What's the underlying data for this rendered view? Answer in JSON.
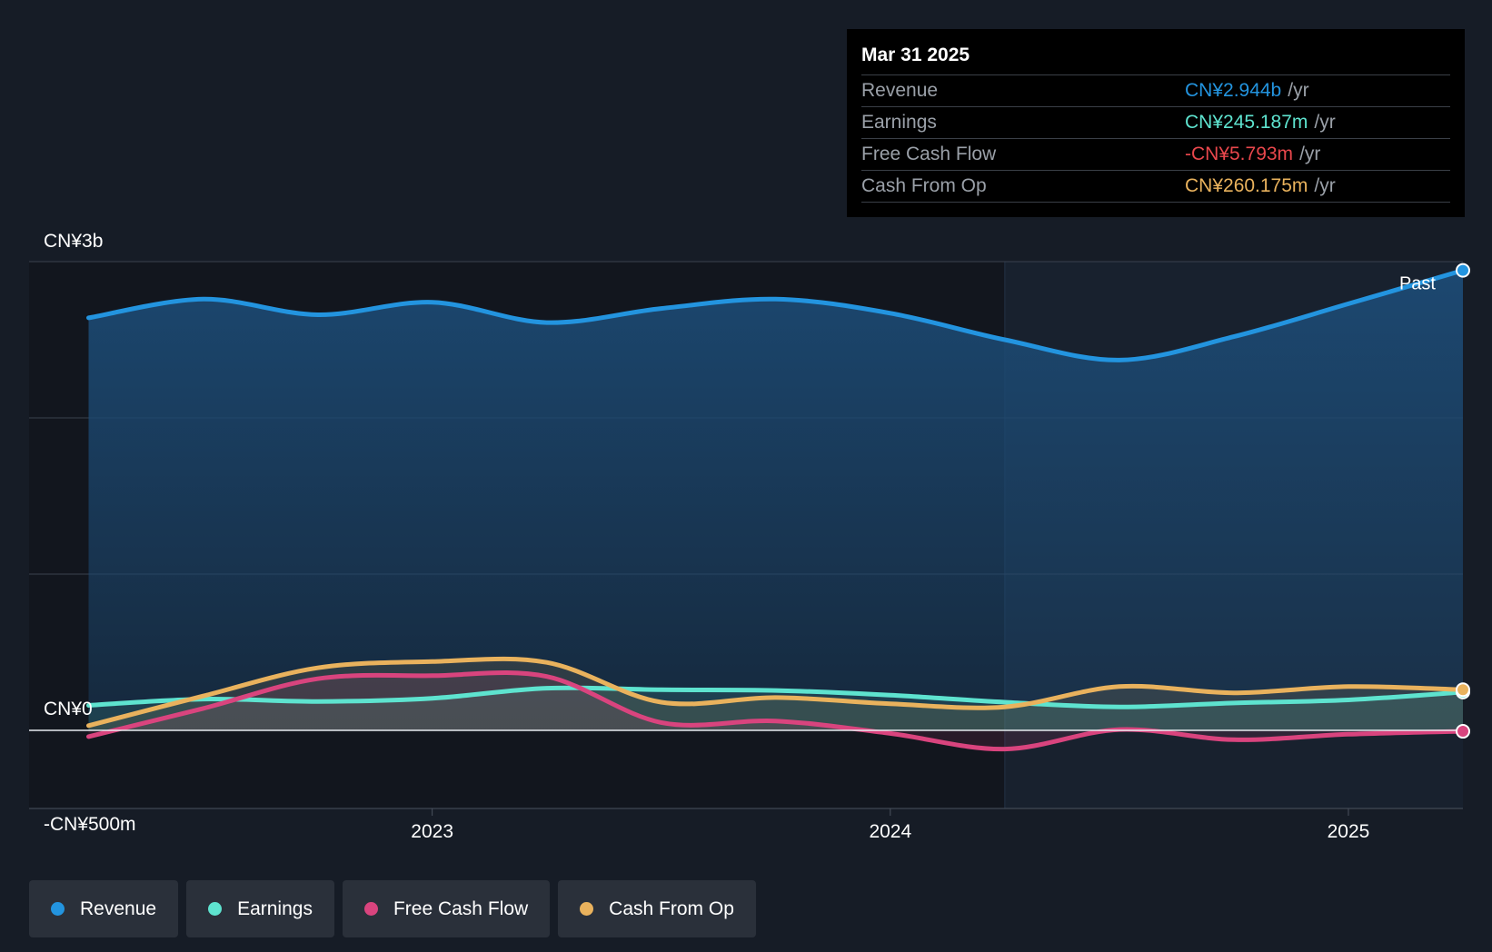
{
  "chart_data": {
    "type": "line",
    "x_unit": "year",
    "y_unit": "CN¥ millions",
    "ylim": [
      -500,
      3000
    ],
    "xlim": [
      2022.12,
      2025.25
    ],
    "y_axis_labels": [
      {
        "label": "CN¥3b",
        "value": 3000
      },
      {
        "label": "CN¥0",
        "value": 0
      },
      {
        "label": "-CN¥500m",
        "value": -500
      }
    ],
    "y_gridlines": [
      3000,
      2000,
      1000
    ],
    "x_ticks": [
      {
        "label": "2023",
        "value": 2023.0
      },
      {
        "label": "2024",
        "value": 2024.0
      },
      {
        "label": "2025",
        "value": 2025.0
      }
    ],
    "past_boundary": 2024.25,
    "past_label": "Past",
    "legend_placement": "bottom-left",
    "series": [
      {
        "name": "Revenue",
        "color": "#2394df",
        "fill": true,
        "points": [
          [
            2022.25,
            2640
          ],
          [
            2022.5,
            2760
          ],
          [
            2022.75,
            2660
          ],
          [
            2023.0,
            2740
          ],
          [
            2023.25,
            2610
          ],
          [
            2023.5,
            2700
          ],
          [
            2023.75,
            2760
          ],
          [
            2024.0,
            2670
          ],
          [
            2024.25,
            2500
          ],
          [
            2024.5,
            2370
          ],
          [
            2024.75,
            2520
          ],
          [
            2025.0,
            2730
          ],
          [
            2025.25,
            2944
          ]
        ]
      },
      {
        "name": "Earnings",
        "color": "#5ee3cf",
        "fill": true,
        "points": [
          [
            2022.25,
            160
          ],
          [
            2022.5,
            200
          ],
          [
            2022.75,
            185
          ],
          [
            2023.0,
            205
          ],
          [
            2023.25,
            270
          ],
          [
            2023.5,
            260
          ],
          [
            2023.75,
            255
          ],
          [
            2024.0,
            225
          ],
          [
            2024.25,
            180
          ],
          [
            2024.5,
            150
          ],
          [
            2024.75,
            175
          ],
          [
            2025.0,
            195
          ],
          [
            2025.25,
            245
          ]
        ]
      },
      {
        "name": "Free Cash Flow",
        "color": "#d9447e",
        "fill": true,
        "points": [
          [
            2022.25,
            -40
          ],
          [
            2022.5,
            140
          ],
          [
            2022.75,
            330
          ],
          [
            2023.0,
            350
          ],
          [
            2023.25,
            345
          ],
          [
            2023.5,
            50
          ],
          [
            2023.75,
            60
          ],
          [
            2024.0,
            -20
          ],
          [
            2024.25,
            -120
          ],
          [
            2024.5,
            5
          ],
          [
            2024.75,
            -60
          ],
          [
            2025.0,
            -25
          ],
          [
            2025.25,
            -6
          ]
        ]
      },
      {
        "name": "Cash From Op",
        "color": "#e9b25d",
        "fill": true,
        "points": [
          [
            2022.25,
            30
          ],
          [
            2022.5,
            220
          ],
          [
            2022.75,
            400
          ],
          [
            2023.0,
            440
          ],
          [
            2023.25,
            435
          ],
          [
            2023.5,
            180
          ],
          [
            2023.75,
            210
          ],
          [
            2024.0,
            170
          ],
          [
            2024.25,
            150
          ],
          [
            2024.5,
            280
          ],
          [
            2024.75,
            240
          ],
          [
            2025.0,
            280
          ],
          [
            2025.25,
            260
          ]
        ]
      }
    ]
  },
  "tooltip": {
    "date": "Mar 31 2025",
    "rows": [
      {
        "name": "Revenue",
        "value": "CN¥2.944b",
        "unit": "/yr",
        "color": "#2394df"
      },
      {
        "name": "Earnings",
        "value": "CN¥245.187m",
        "unit": "/yr",
        "color": "#5ee3cf"
      },
      {
        "name": "Free Cash Flow",
        "value": "-CN¥5.793m",
        "unit": "/yr",
        "color": "#e8474c"
      },
      {
        "name": "Cash From Op",
        "value": "CN¥260.175m",
        "unit": "/yr",
        "color": "#e9b25d"
      }
    ]
  },
  "legend": [
    {
      "label": "Revenue",
      "color": "#2394df"
    },
    {
      "label": "Earnings",
      "color": "#5ee3cf"
    },
    {
      "label": "Free Cash Flow",
      "color": "#d9447e"
    },
    {
      "label": "Cash From Op",
      "color": "#e9b25d"
    }
  ]
}
